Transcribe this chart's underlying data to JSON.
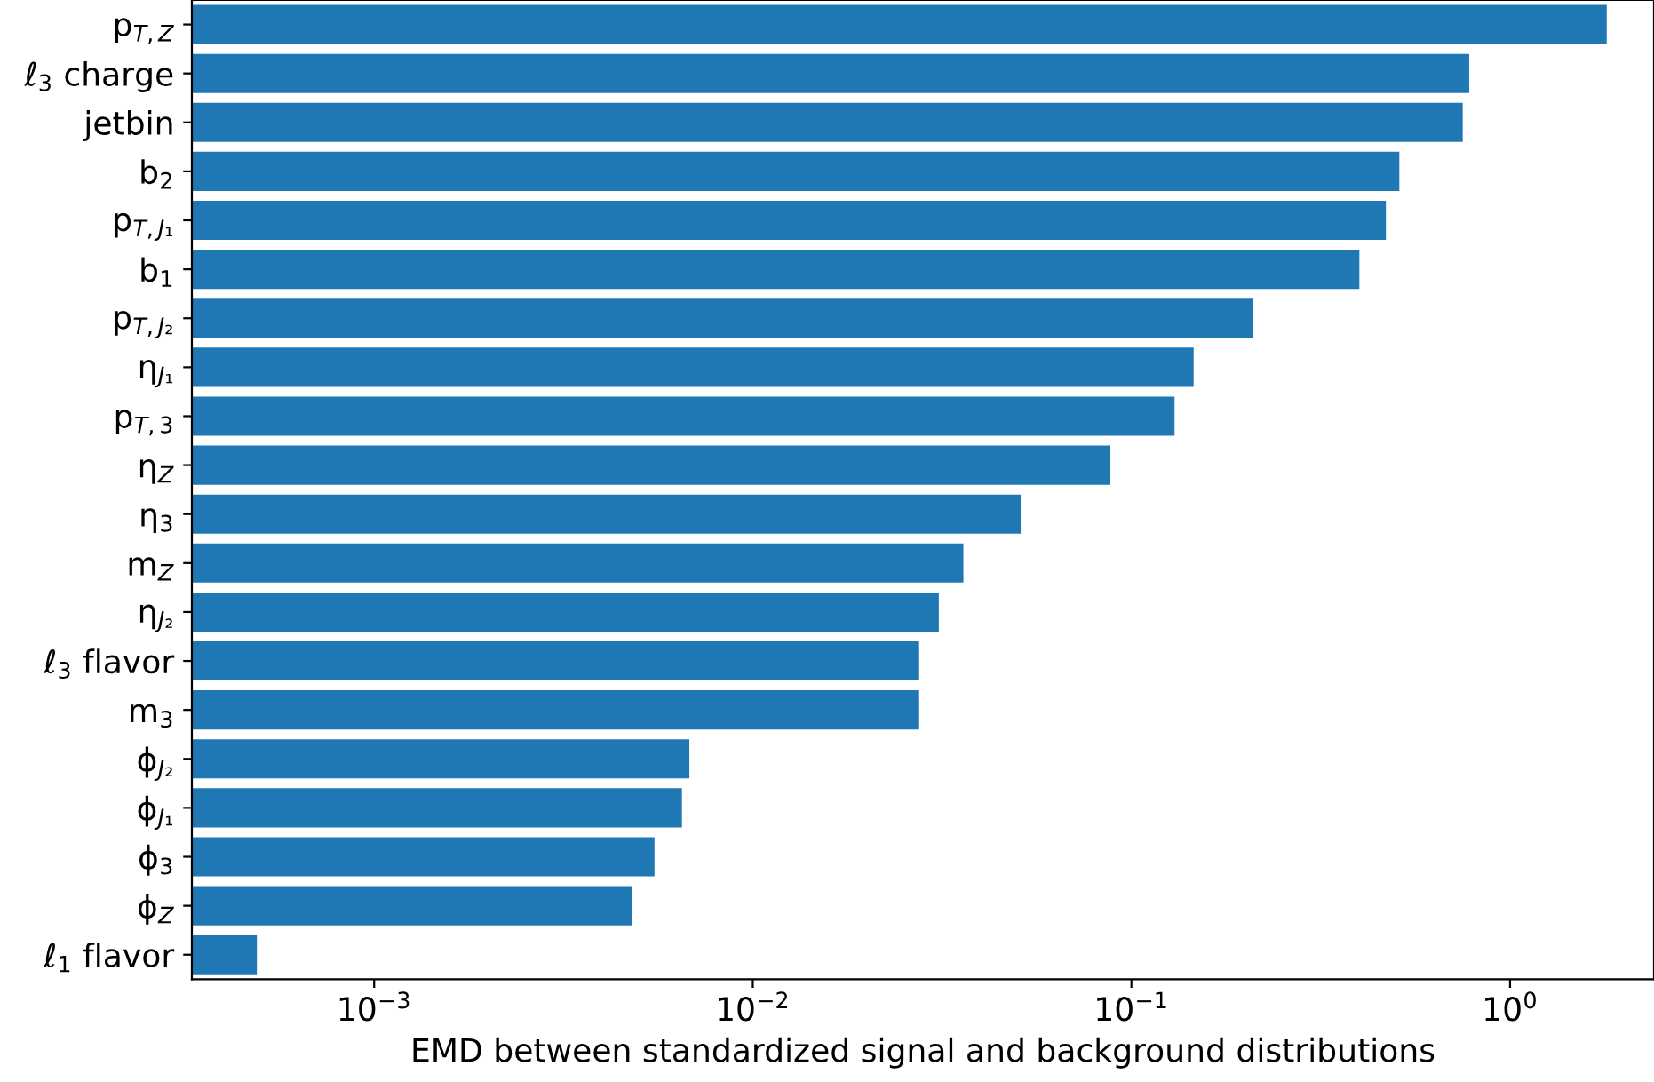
{
  "chart_data": {
    "type": "bar",
    "orientation": "horizontal",
    "log": "x",
    "xlabel": "EMD between standardized signal and background distributions",
    "categories": [
      "p$_{T,Z}$",
      "ℓ$_{3}$ charge",
      "jetbin",
      "b$_{2}$",
      "p$_{T,J₁}$",
      "b$_{1}$",
      "p$_{T,J₂}$",
      "η$_{J₁}$",
      "p$_{T,3}$",
      "η$_{Z}$",
      "η$_{3}$",
      "m$_{Z}$",
      "η$_{J₂}$",
      "ℓ$_{3}$ flavor",
      "m$_{3}$",
      "ϕ$_{J₂}$",
      "ϕ$_{J₁}$",
      "ϕ$_{3}$",
      "ϕ$_{Z}$",
      "ℓ$_{1}$ flavor"
    ],
    "values": [
      1.8,
      0.78,
      0.75,
      0.51,
      0.47,
      0.4,
      0.21,
      0.146,
      0.13,
      0.088,
      0.051,
      0.036,
      0.031,
      0.0275,
      0.0275,
      0.0068,
      0.0065,
      0.0055,
      0.0048,
      0.00049
    ],
    "color": "#1f77b4",
    "xlim": [
      0.00033,
      2.4
    ],
    "xticks": [
      {
        "value": 0.001,
        "label": "10$^{−3}$"
      },
      {
        "value": 0.01,
        "label": "10$^{−2}$"
      },
      {
        "value": 0.1,
        "label": "10$^{−1}$"
      },
      {
        "value": 1,
        "label": "10$^{0}$"
      }
    ],
    "grid": false,
    "legend": false
  }
}
